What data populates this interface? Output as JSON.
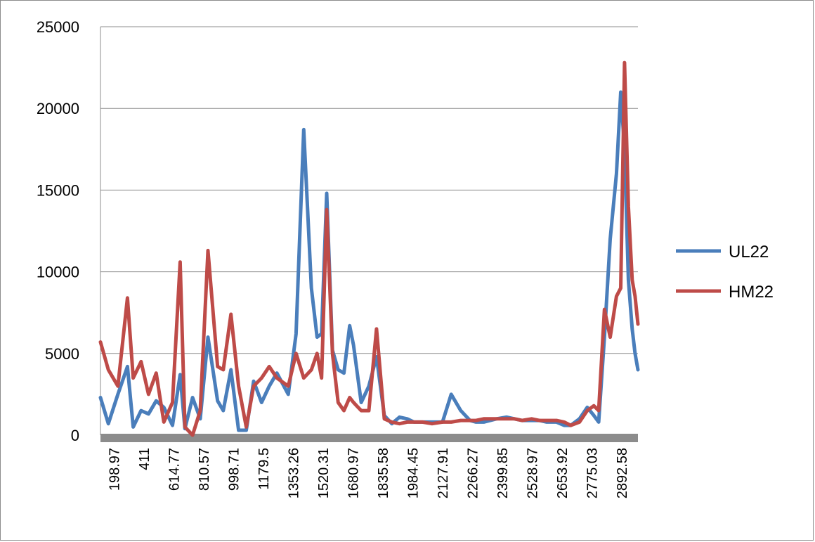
{
  "chart_data": {
    "type": "line",
    "title": "",
    "xlabel": "",
    "ylabel": "",
    "ylim": [
      0,
      25000
    ],
    "yticks": [
      0,
      5000,
      10000,
      15000,
      20000,
      25000
    ],
    "grid": true,
    "legend": "right",
    "x_tick_labels": [
      "198.97",
      "411",
      "614.77",
      "810.57",
      "998.71",
      "1179.5",
      "1353.26",
      "1520.31",
      "1680.97",
      "1835.58",
      "1984.45",
      "2127.91",
      "2266.27",
      "2399.85",
      "2528.97",
      "2653.92",
      "2775.03",
      "2892.58"
    ],
    "x": [
      198.97,
      240,
      290,
      340,
      370,
      411,
      450,
      490,
      530,
      575,
      614.77,
      640,
      680,
      720,
      760,
      810.57,
      840,
      880,
      920,
      960,
      998.71,
      1040,
      1080,
      1120,
      1179.5,
      1220,
      1260,
      1300,
      1330,
      1353.26,
      1380,
      1410,
      1440,
      1470,
      1500,
      1520.31,
      1560,
      1600,
      1640,
      1680.97,
      1720,
      1760,
      1800,
      1835.58,
      1880,
      1930,
      1984.45,
      2030,
      2080,
      2127.91,
      2160,
      2200,
      2266.27,
      2320,
      2360,
      2399.85,
      2450,
      2490,
      2528.97,
      2580,
      2620,
      2653.92,
      2700,
      2740,
      2775.03,
      2800,
      2830,
      2860,
      2892.58,
      2915,
      2935,
      2955,
      2975,
      2990,
      3005
    ],
    "series": [
      {
        "name": "UL22",
        "color": "#4a7ebb",
        "values": [
          2300,
          700,
          2500,
          4200,
          500,
          1500,
          1300,
          2100,
          1700,
          600,
          3700,
          400,
          2300,
          1000,
          6000,
          2100,
          1500,
          4000,
          300,
          300,
          3300,
          2000,
          3000,
          3800,
          2500,
          6200,
          18700,
          9000,
          6000,
          6200,
          14800,
          5200,
          4000,
          3800,
          6700,
          5500,
          2000,
          3000,
          4800,
          1200,
          700,
          1100,
          1000,
          800,
          800,
          800,
          800,
          2500,
          1500,
          900,
          800,
          800,
          1000,
          1100,
          1000,
          900,
          900,
          900,
          800,
          800,
          600,
          600,
          1000,
          1700,
          1200,
          800,
          6000,
          12000,
          16000,
          21000,
          17500,
          9500,
          6500,
          5000,
          4000
        ]
      },
      {
        "name": "HM22",
        "color": "#be4b48",
        "values": [
          5700,
          4000,
          3000,
          8400,
          3500,
          4500,
          2500,
          3800,
          800,
          2000,
          10600,
          500,
          0,
          1500,
          11300,
          4200,
          4000,
          7400,
          3000,
          500,
          3000,
          3500,
          4200,
          3500,
          3000,
          5000,
          3500,
          4000,
          5000,
          3500,
          13800,
          5000,
          2000,
          1500,
          2300,
          2000,
          1500,
          1500,
          6500,
          1000,
          800,
          700,
          800,
          800,
          800,
          700,
          800,
          800,
          900,
          900,
          900,
          1000,
          1000,
          1000,
          1000,
          900,
          1000,
          900,
          900,
          900,
          800,
          600,
          800,
          1500,
          1800,
          1500,
          7700,
          6000,
          8500,
          9000,
          22800,
          14000,
          9500,
          8500,
          6800
        ]
      }
    ]
  }
}
